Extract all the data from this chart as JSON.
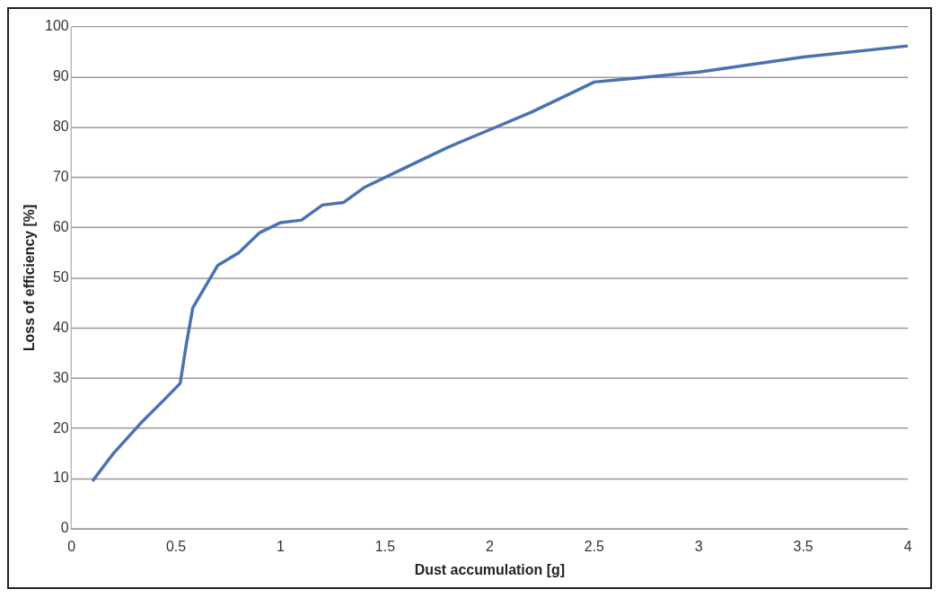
{
  "chart_data": {
    "type": "line",
    "xlabel": "Dust accumulation [g]",
    "ylabel": "Loss of efficiency [%]",
    "xlim": [
      0,
      4
    ],
    "xticks": [
      0,
      0.5,
      1,
      1.5,
      2,
      2.5,
      3,
      3.5,
      4
    ],
    "ylim": [
      0,
      100
    ],
    "yticks": [
      0,
      10,
      20,
      30,
      40,
      50,
      60,
      70,
      80,
      90,
      100
    ],
    "grid": "y",
    "marker": "none",
    "line_style": "solid",
    "series": [
      {
        "color": "#4a72b0",
        "x": [
          0.1,
          0.2,
          0.33,
          0.45,
          0.52,
          0.55,
          0.58,
          0.65,
          0.7,
          0.8,
          0.9,
          1.0,
          1.1,
          1.2,
          1.3,
          1.4,
          1.6,
          1.8,
          2.0,
          2.2,
          2.4,
          2.5,
          2.7,
          3.0,
          3.5,
          4.0
        ],
        "values": [
          9.5,
          15,
          21,
          26,
          29,
          37,
          44,
          49,
          52.5,
          55,
          59,
          61,
          61.5,
          64.5,
          65,
          68,
          72,
          76,
          79.5,
          83,
          87,
          89,
          89.8,
          91,
          94,
          96.2
        ]
      }
    ]
  }
}
